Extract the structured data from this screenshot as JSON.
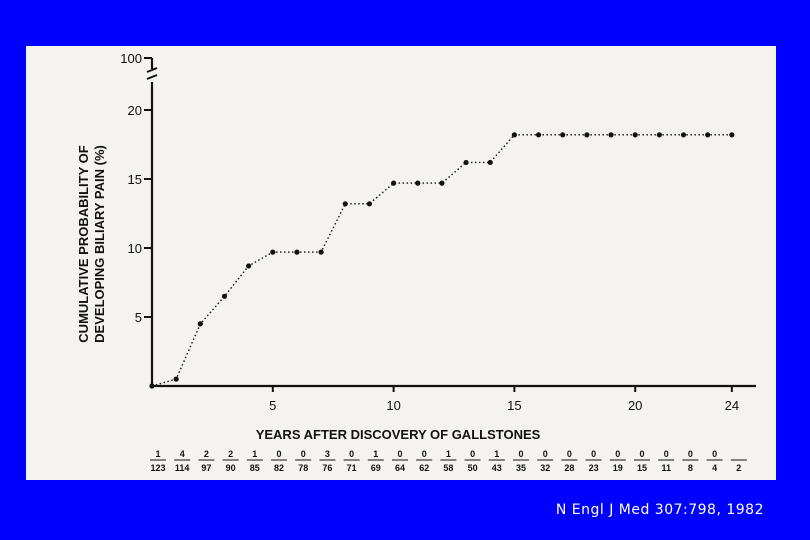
{
  "citation": "N Engl J Med 307:798, 1982",
  "colors": {
    "background": "#0000ff",
    "panel": "#f4f3ef",
    "ink": "#111111"
  },
  "chart_data": {
    "type": "line",
    "xlabel": "YEARS AFTER DISCOVERY OF GALLSTONES",
    "ylabel_lines": [
      "CUMULATIVE PROBABILITY OF",
      "DEVELOPING BILIARY PAIN (%)"
    ],
    "x_ticks": [
      5,
      10,
      15,
      20,
      24
    ],
    "y_ticks": [
      5,
      10,
      15,
      20
    ],
    "y_break_label": "100",
    "xlim": [
      0,
      25
    ],
    "ylim": [
      0,
      20
    ],
    "line_style": "dotted",
    "x": [
      0,
      1,
      2,
      3,
      4,
      5,
      6,
      7,
      8,
      9,
      10,
      11,
      12,
      13,
      14,
      15,
      16,
      17,
      18,
      19,
      20,
      21,
      22,
      23,
      24
    ],
    "y": [
      0,
      0.5,
      4.5,
      6.5,
      8.7,
      9.7,
      9.7,
      9.7,
      13.2,
      13.2,
      14.7,
      14.7,
      14.7,
      16.2,
      16.2,
      18.2,
      18.2,
      18.2,
      18.2,
      18.2,
      18.2,
      18.2,
      18.2,
      18.2,
      18.2
    ],
    "risk_table": {
      "events": [
        "1",
        "4",
        "2",
        "2",
        "1",
        "0",
        "0",
        "3",
        "0",
        "1",
        "0",
        "0",
        "1",
        "0",
        "1",
        "0",
        "0",
        "0",
        "0",
        "0",
        "0",
        "0",
        "0",
        "0"
      ],
      "at_risk": [
        "123",
        "114",
        "97",
        "90",
        "85",
        "82",
        "78",
        "76",
        "71",
        "69",
        "64",
        "62",
        "58",
        "50",
        "43",
        "35",
        "32",
        "28",
        "23",
        "19",
        "15",
        "11",
        "8",
        "4",
        "2"
      ]
    }
  }
}
